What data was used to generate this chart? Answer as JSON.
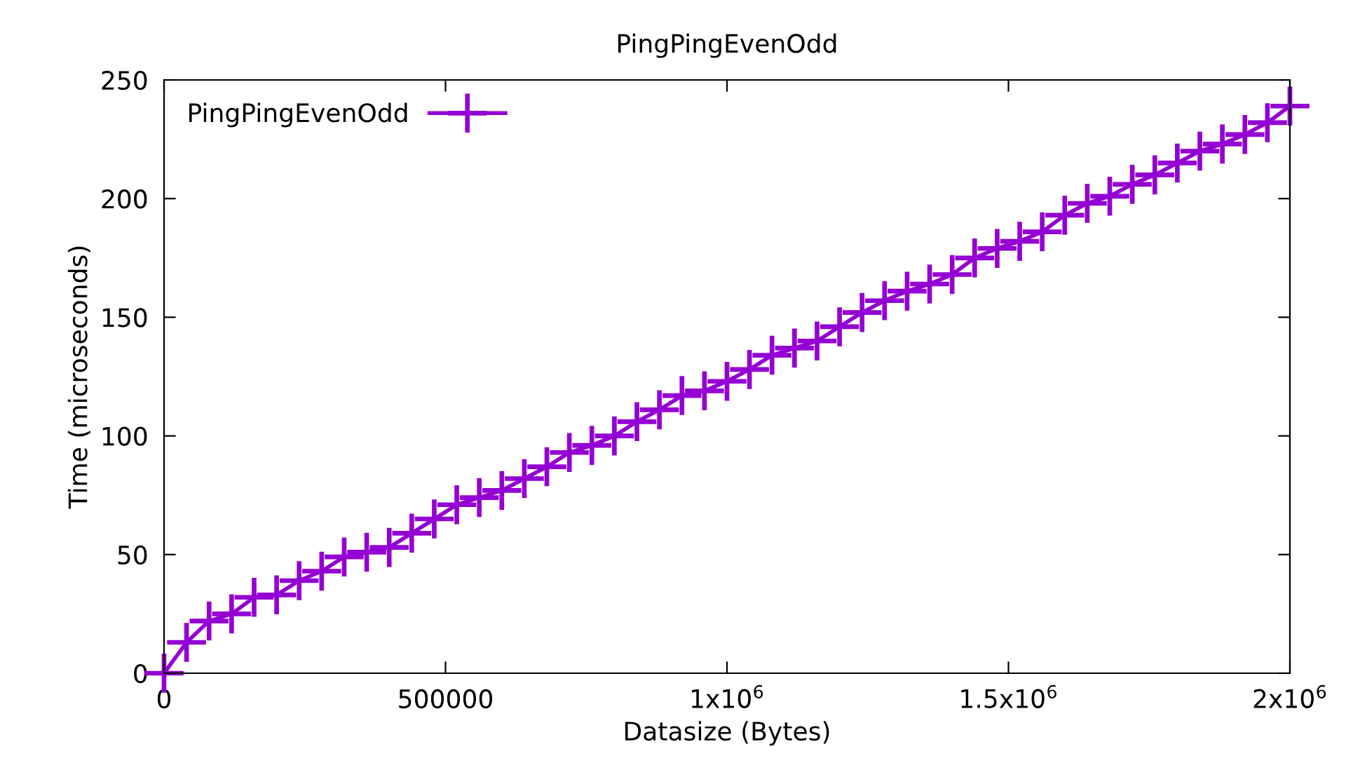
{
  "chart_data": {
    "type": "line",
    "title": "PingPingEvenOdd",
    "xlabel": "Datasize (Bytes)",
    "ylabel": "Time (microseconds)",
    "x": [
      0,
      40000,
      80000,
      120000,
      160000,
      200000,
      240000,
      280000,
      320000,
      360000,
      400000,
      440000,
      480000,
      520000,
      560000,
      600000,
      640000,
      680000,
      720000,
      760000,
      800000,
      840000,
      880000,
      920000,
      960000,
      1000000,
      1040000,
      1080000,
      1120000,
      1160000,
      1200000,
      1240000,
      1280000,
      1320000,
      1360000,
      1400000,
      1440000,
      1480000,
      1520000,
      1560000,
      1600000,
      1640000,
      1680000,
      1720000,
      1760000,
      1800000,
      1840000,
      1880000,
      1920000,
      1960000,
      2000000
    ],
    "series": [
      {
        "name": "PingPingEvenOdd",
        "color": "#9400d3",
        "values": [
          0,
          13,
          22,
          25,
          32,
          33,
          39,
          43,
          49,
          51,
          53,
          59,
          65,
          71,
          74,
          77,
          82,
          87,
          93,
          96,
          100,
          106,
          111,
          117,
          119,
          123,
          128,
          134,
          137,
          140,
          146,
          152,
          157,
          161,
          164,
          168,
          175,
          179,
          182,
          186,
          193,
          198,
          201,
          206,
          210,
          215,
          220,
          223,
          227,
          232,
          239
        ]
      }
    ],
    "xlim": [
      0,
      2000000
    ],
    "xticks": [
      0,
      500000,
      {
        "value": 1000000,
        "label": "1x10$^{6}$"
      },
      {
        "value": 1500000,
        "label": "1.5x10$^{6}$"
      },
      {
        "value": 2000000,
        "label": "2x10$^{6}$"
      }
    ],
    "ylim": [
      0,
      250
    ],
    "yticks": [
      0,
      50,
      100,
      150,
      200,
      250
    ],
    "grid": false,
    "legend": "top left",
    "marker": "cross",
    "line_style": "solid"
  }
}
